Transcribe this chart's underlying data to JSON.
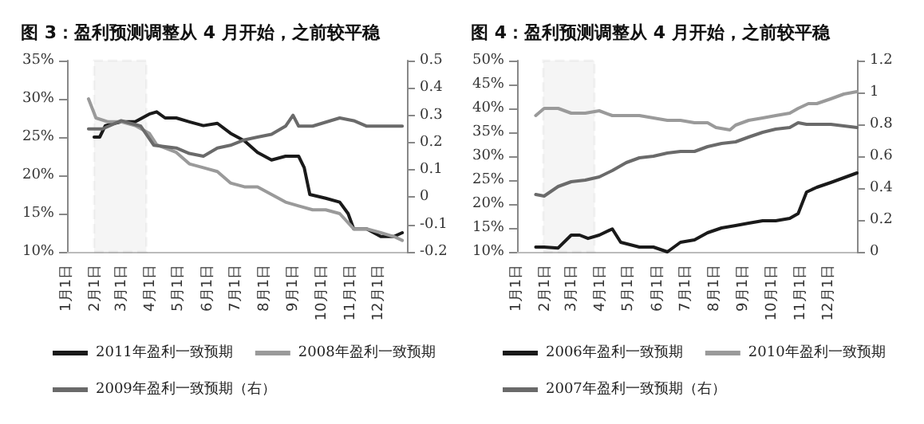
{
  "chart_data": [
    {
      "type": "line",
      "title": "图 3：盈利预测调整从 4 月开始，之前较平稳",
      "legend": "bottom",
      "marker": "none",
      "xlim": [
        "--01-01",
        "--12-31"
      ],
      "xticks": [
        {
          "value": "--01-01",
          "label": "1月1日"
        },
        {
          "value": "--02-01",
          "label": "2月1日"
        },
        {
          "value": "--03-01",
          "label": "3月1日"
        },
        {
          "value": "--04-01",
          "label": "4月1日"
        },
        {
          "value": "--05-01",
          "label": "5月1日"
        },
        {
          "value": "--06-01",
          "label": "6月1日"
        },
        {
          "value": "--07-01",
          "label": "7月1日"
        },
        {
          "value": "--08-01",
          "label": "8月1日"
        },
        {
          "value": "--09-01",
          "label": "9月1日"
        },
        {
          "value": "--10-01",
          "label": "10月1日"
        },
        {
          "value": "--11-01",
          "label": "11月1日"
        },
        {
          "value": "--12-01",
          "label": "12月1日"
        }
      ],
      "ylim": [
        10,
        35
      ],
      "yticks": [
        {
          "value": 10,
          "label": "10%"
        },
        {
          "value": 15,
          "label": "15%"
        },
        {
          "value": 20,
          "label": "20%"
        },
        {
          "value": 25,
          "label": "25%"
        },
        {
          "value": 30,
          "label": "30%"
        },
        {
          "value": 35,
          "label": "35%"
        }
      ],
      "y2lim": [
        -0.2,
        0.5
      ],
      "y2ticks": [
        -0.2,
        -0.1,
        0,
        0.1,
        0.2,
        0.3,
        0.4,
        0.5
      ],
      "bands": [
        {
          "axis": "x",
          "from": "--01-30",
          "to": "--03-27",
          "color": "#000000"
        }
      ],
      "series": [
        {
          "name": "2011年盈利一致预期",
          "color": "#1a1a1a",
          "x": [
            "--01-30",
            "--02-05",
            "--02-11",
            "--02-28",
            "--03-15",
            "--03-30",
            "--04-07",
            "--04-16",
            "--04-28",
            "--05-12",
            "--05-27",
            "--06-11",
            "--06-25",
            "--07-10",
            "--07-24",
            "--08-08",
            "--08-23",
            "--09-06",
            "--09-12",
            "--09-18",
            "--10-05",
            "--10-20",
            "--10-29",
            "--11-04",
            "--11-18",
            "--12-03",
            "--12-17",
            "--12-26"
          ],
          "values": [
            25,
            25,
            26.5,
            27,
            27,
            28,
            28.3,
            27.5,
            27.5,
            27,
            26.5,
            26.8,
            25.5,
            24.5,
            23,
            22,
            22.5,
            22.5,
            21,
            17.5,
            17,
            16.5,
            15,
            13,
            13,
            12,
            12,
            12.5
          ]
        },
        {
          "name": "2008年盈利一致预期",
          "color": "#9a9a9a",
          "x": [
            "--01-24",
            "--02-01",
            "--02-14",
            "--02-28",
            "--03-15",
            "--03-30",
            "--04-07",
            "--04-28",
            "--05-12",
            "--05-27",
            "--06-11",
            "--06-25",
            "--07-10",
            "--07-24",
            "--08-08",
            "--08-23",
            "--09-06",
            "--09-21",
            "--10-05",
            "--10-20",
            "--11-04",
            "--11-18",
            "--12-03",
            "--12-17",
            "--12-26"
          ],
          "values": [
            30,
            27.5,
            27,
            27,
            26.5,
            25.5,
            24,
            23,
            21.5,
            21,
            20.5,
            19,
            18.5,
            18.5,
            17.5,
            16.5,
            16,
            15.5,
            15.5,
            15,
            13,
            13,
            12.5,
            12,
            11.5
          ]
        },
        {
          "name": "2009年盈利一致预期（右）",
          "color": "#6a6a6a",
          "axis": "y2",
          "x": [
            "--01-24",
            "--02-08",
            "--02-28",
            "--03-21",
            "--04-04",
            "--04-28",
            "--05-12",
            "--05-27",
            "--06-11",
            "--06-25",
            "--07-10",
            "--07-24",
            "--08-08",
            "--08-23",
            "--08-31",
            "--09-06",
            "--09-21",
            "--10-20",
            "--11-04",
            "--11-18",
            "--12-03",
            "--12-26"
          ],
          "values": [
            0.25,
            0.25,
            0.28,
            0.26,
            0.19,
            0.18,
            0.16,
            0.15,
            0.18,
            0.19,
            0.21,
            0.22,
            0.23,
            0.26,
            0.3,
            0.26,
            0.26,
            0.29,
            0.28,
            0.26,
            0.26,
            0.26
          ]
        }
      ]
    },
    {
      "type": "line",
      "title": "图 4：盈利预测调整从 4 月开始，之前较平稳",
      "legend": "bottom",
      "marker": "none",
      "xlim": [
        "--01-01",
        "--12-31"
      ],
      "xticks": [
        {
          "value": "--01-01",
          "label": "1月1日"
        },
        {
          "value": "--02-01",
          "label": "2月1日"
        },
        {
          "value": "--03-01",
          "label": "3月1日"
        },
        {
          "value": "--04-01",
          "label": "4月1日"
        },
        {
          "value": "--05-01",
          "label": "5月1日"
        },
        {
          "value": "--06-01",
          "label": "6月1日"
        },
        {
          "value": "--07-01",
          "label": "7月1日"
        },
        {
          "value": "--08-01",
          "label": "8月1日"
        },
        {
          "value": "--09-01",
          "label": "9月1日"
        },
        {
          "value": "--10-01",
          "label": "10月1日"
        },
        {
          "value": "--11-01",
          "label": "11月1日"
        },
        {
          "value": "--12-01",
          "label": "12月1日"
        }
      ],
      "ylim": [
        10,
        50
      ],
      "yticks": [
        {
          "value": 10,
          "label": "10%"
        },
        {
          "value": 15,
          "label": "15%"
        },
        {
          "value": 20,
          "label": "20%"
        },
        {
          "value": 25,
          "label": "25%"
        },
        {
          "value": 30,
          "label": "30%"
        },
        {
          "value": 35,
          "label": "35%"
        },
        {
          "value": 40,
          "label": "40%"
        },
        {
          "value": 45,
          "label": "45%"
        },
        {
          "value": 50,
          "label": "50%"
        }
      ],
      "y2lim": [
        0,
        1.2
      ],
      "y2ticks": [
        0,
        0.2,
        0.4,
        0.6,
        0.8,
        1,
        1.2
      ],
      "bands": [
        {
          "axis": "x",
          "from": "--01-29",
          "to": "--03-25",
          "color": "#000000"
        }
      ],
      "series": [
        {
          "name": "2006年盈利一致预期",
          "color": "#1a1a1a",
          "x": [
            "--01-21",
            "--01-30",
            "--02-14",
            "--02-28",
            "--03-09",
            "--03-18",
            "--03-30",
            "--04-13",
            "--04-22",
            "--05-12",
            "--05-27",
            "--06-11",
            "--06-25",
            "--07-10",
            "--07-24",
            "--08-08",
            "--08-23",
            "--09-06",
            "--09-21",
            "--10-05",
            "--10-20",
            "--10-29",
            "--11-07",
            "--11-18",
            "--12-03",
            "--12-17",
            "--12-31"
          ],
          "values": [
            11,
            11,
            10.8,
            13.5,
            13.5,
            12.8,
            13.5,
            14.8,
            12,
            11,
            11,
            10,
            12,
            12.5,
            14,
            15,
            15.5,
            16,
            16.5,
            16.5,
            17,
            18,
            22.5,
            23.5,
            24.5,
            25.5,
            26.5
          ]
        },
        {
          "name": "2010年盈利一致预期",
          "color": "#9a9a9a",
          "x": [
            "--01-21",
            "--01-30",
            "--02-14",
            "--02-28",
            "--03-15",
            "--03-30",
            "--04-13",
            "--04-28",
            "--05-12",
            "--05-27",
            "--06-11",
            "--06-25",
            "--07-10",
            "--07-24",
            "--08-02",
            "--08-17",
            "--08-23",
            "--09-06",
            "--09-21",
            "--10-05",
            "--10-20",
            "--10-29",
            "--11-09",
            "--11-18",
            "--12-03",
            "--12-17",
            "--12-31"
          ],
          "values": [
            38.5,
            40,
            40,
            39,
            39,
            39.5,
            38.5,
            38.5,
            38.5,
            38,
            37.5,
            37.5,
            37,
            37,
            36,
            35.5,
            36.5,
            37.5,
            38,
            38.5,
            39,
            40,
            41,
            41,
            42,
            43,
            43.5
          ]
        },
        {
          "name": "2007年盈利一致预期（右）",
          "color": "#6a6a6a",
          "axis": "y2",
          "x": [
            "--01-21",
            "--01-30",
            "--02-14",
            "--02-28",
            "--03-15",
            "--03-30",
            "--04-13",
            "--04-28",
            "--05-12",
            "--05-27",
            "--06-11",
            "--06-25",
            "--07-10",
            "--07-24",
            "--08-08",
            "--08-23",
            "--09-06",
            "--09-21",
            "--10-05",
            "--10-20",
            "--10-29",
            "--11-07",
            "--11-18",
            "--12-03",
            "--12-31"
          ],
          "values": [
            0.36,
            0.35,
            0.41,
            0.44,
            0.45,
            0.47,
            0.51,
            0.56,
            0.59,
            0.6,
            0.62,
            0.63,
            0.63,
            0.66,
            0.68,
            0.69,
            0.72,
            0.75,
            0.77,
            0.78,
            0.81,
            0.8,
            0.8,
            0.8,
            0.78
          ]
        }
      ]
    }
  ]
}
